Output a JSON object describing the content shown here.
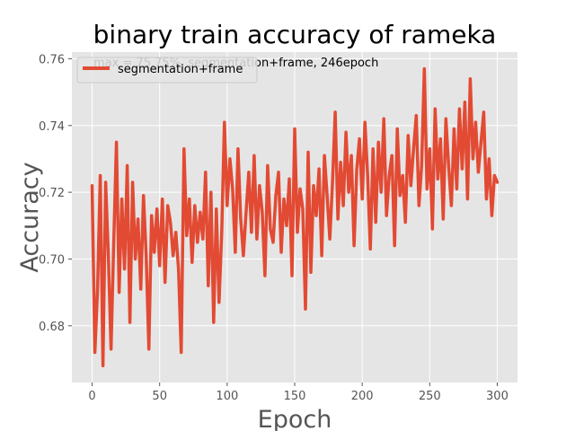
{
  "chart_data": {
    "type": "line",
    "title": "binary train accuracy of rameka",
    "xlabel": "Epoch",
    "ylabel": "Accuracy",
    "xlim": [
      -15,
      315
    ],
    "ylim": [
      0.663,
      0.762
    ],
    "xticks": [
      0,
      50,
      100,
      150,
      200,
      250,
      300
    ],
    "yticks": [
      0.68,
      0.7,
      0.72,
      0.74,
      0.76
    ],
    "ytick_labels": [
      "0.68",
      "0.70",
      "0.72",
      "0.74",
      "0.76"
    ],
    "grid": true,
    "legend": {
      "placement": "top-left",
      "entries": [
        "segmentation+frame"
      ]
    },
    "annotation": "max = 75.75%, segmentation+frame, 246epoch",
    "colors": {
      "series": "#E24A33",
      "plot_bg": "#E5E5E5",
      "grid": "#FFFFFF",
      "tick": "#555555"
    },
    "series": [
      {
        "name": "segmentation+frame",
        "x": [
          0,
          2,
          4,
          6,
          8,
          10,
          12,
          14,
          16,
          18,
          20,
          22,
          24,
          26,
          28,
          30,
          32,
          34,
          36,
          38,
          40,
          42,
          44,
          46,
          48,
          50,
          52,
          54,
          56,
          58,
          60,
          62,
          64,
          66,
          68,
          70,
          72,
          74,
          76,
          78,
          80,
          82,
          84,
          86,
          88,
          90,
          92,
          94,
          96,
          98,
          100,
          102,
          104,
          106,
          108,
          110,
          112,
          114,
          116,
          118,
          120,
          122,
          124,
          126,
          128,
          130,
          132,
          134,
          136,
          138,
          140,
          142,
          144,
          146,
          148,
          150,
          152,
          154,
          156,
          158,
          160,
          162,
          164,
          166,
          168,
          170,
          172,
          174,
          176,
          178,
          180,
          182,
          184,
          186,
          188,
          190,
          192,
          194,
          196,
          198,
          200,
          202,
          204,
          206,
          208,
          210,
          212,
          214,
          216,
          218,
          220,
          222,
          224,
          226,
          228,
          230,
          232,
          234,
          236,
          238,
          240,
          242,
          244,
          246,
          248,
          250,
          252,
          254,
          256,
          258,
          260,
          262,
          264,
          266,
          268,
          270,
          272,
          274,
          276,
          278,
          280,
          282,
          284,
          286,
          288,
          290,
          292,
          294,
          296,
          298,
          300
        ],
        "values": [
          0.722,
          0.672,
          0.691,
          0.725,
          0.668,
          0.723,
          0.701,
          0.673,
          0.705,
          0.735,
          0.69,
          0.718,
          0.697,
          0.728,
          0.681,
          0.723,
          0.7,
          0.712,
          0.691,
          0.719,
          0.701,
          0.673,
          0.713,
          0.702,
          0.715,
          0.698,
          0.718,
          0.693,
          0.716,
          0.711,
          0.701,
          0.708,
          0.697,
          0.672,
          0.733,
          0.707,
          0.718,
          0.699,
          0.716,
          0.705,
          0.714,
          0.706,
          0.726,
          0.692,
          0.72,
          0.681,
          0.715,
          0.687,
          0.708,
          0.741,
          0.716,
          0.73,
          0.721,
          0.702,
          0.733,
          0.712,
          0.701,
          0.714,
          0.726,
          0.708,
          0.731,
          0.706,
          0.722,
          0.714,
          0.695,
          0.728,
          0.709,
          0.705,
          0.719,
          0.726,
          0.702,
          0.718,
          0.71,
          0.724,
          0.695,
          0.739,
          0.708,
          0.721,
          0.715,
          0.685,
          0.732,
          0.696,
          0.722,
          0.713,
          0.727,
          0.701,
          0.731,
          0.719,
          0.706,
          0.723,
          0.744,
          0.712,
          0.729,
          0.716,
          0.738,
          0.72,
          0.731,
          0.704,
          0.727,
          0.736,
          0.718,
          0.741,
          0.725,
          0.703,
          0.733,
          0.711,
          0.735,
          0.72,
          0.742,
          0.713,
          0.725,
          0.731,
          0.704,
          0.739,
          0.719,
          0.725,
          0.711,
          0.737,
          0.722,
          0.733,
          0.743,
          0.716,
          0.728,
          0.757,
          0.721,
          0.733,
          0.709,
          0.745,
          0.724,
          0.736,
          0.712,
          0.742,
          0.728,
          0.716,
          0.739,
          0.721,
          0.745,
          0.727,
          0.747,
          0.718,
          0.754,
          0.73,
          0.741,
          0.726,
          0.735,
          0.744,
          0.718,
          0.73,
          0.713,
          0.725,
          0.723
        ]
      }
    ]
  }
}
